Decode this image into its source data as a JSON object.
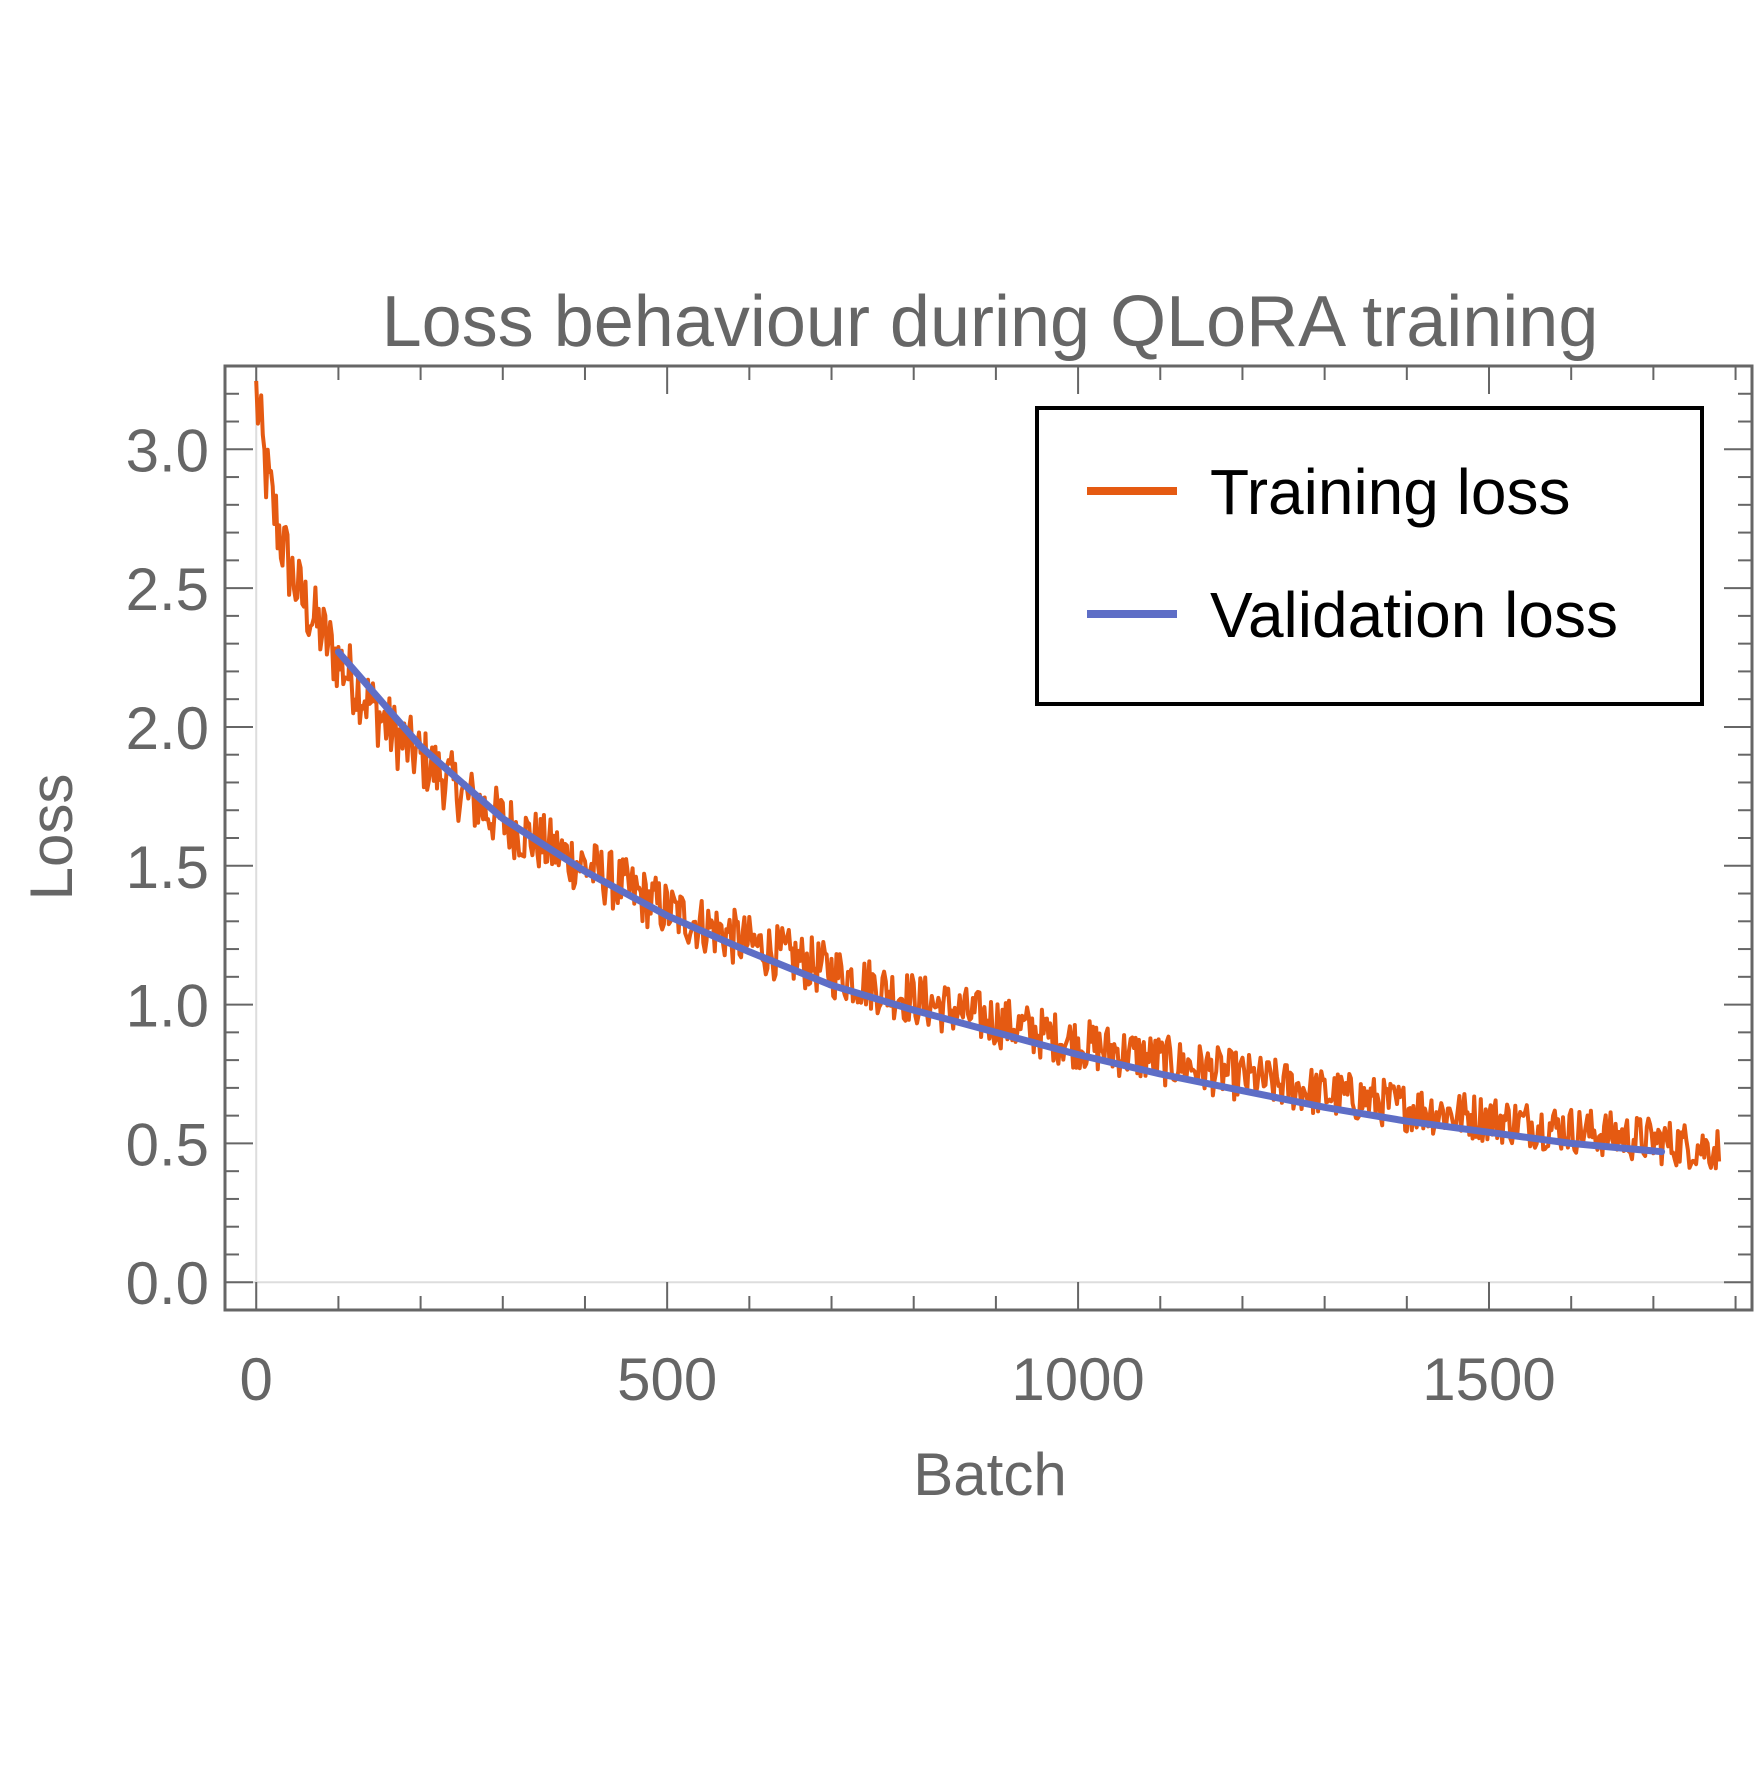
{
  "chart_data": {
    "type": "line",
    "title": "Loss behaviour during QLoRA training",
    "xlabel": "Batch",
    "ylabel": "Loss",
    "xlim": [
      -38,
      1820
    ],
    "ylim": [
      -0.1,
      3.3
    ],
    "x_ticks": [
      0,
      500,
      1000,
      1500
    ],
    "x_tick_labels": [
      "0",
      "500",
      "1000",
      "1500"
    ],
    "y_ticks": [
      0.0,
      0.5,
      1.0,
      1.5,
      2.0,
      2.5,
      3.0
    ],
    "y_tick_labels": [
      "0.0",
      "0.5",
      "1.0",
      "1.5",
      "2.0",
      "2.5",
      "3.0"
    ],
    "grid": false,
    "legend_position": "top-right",
    "series": [
      {
        "name": "Training loss",
        "color": "#e55a12",
        "x": [
          0,
          10,
          20,
          30,
          40,
          50,
          60,
          70,
          80,
          90,
          100,
          120,
          140,
          160,
          180,
          200,
          220,
          240,
          260,
          280,
          300,
          330,
          360,
          400,
          450,
          500,
          550,
          600,
          650,
          700,
          750,
          800,
          850,
          900,
          950,
          1000,
          1050,
          1100,
          1150,
          1200,
          1250,
          1300,
          1350,
          1400,
          1450,
          1500,
          1550,
          1600,
          1650,
          1700,
          1750,
          1780
        ],
        "y": [
          3.2,
          2.95,
          2.8,
          2.68,
          2.58,
          2.5,
          2.44,
          2.39,
          2.34,
          2.29,
          2.24,
          2.16,
          2.08,
          2.0,
          1.94,
          1.89,
          1.84,
          1.79,
          1.74,
          1.7,
          1.66,
          1.61,
          1.56,
          1.5,
          1.42,
          1.34,
          1.28,
          1.22,
          1.17,
          1.12,
          1.07,
          1.02,
          0.98,
          0.94,
          0.9,
          0.86,
          0.83,
          0.8,
          0.77,
          0.74,
          0.71,
          0.68,
          0.66,
          0.63,
          0.61,
          0.59,
          0.57,
          0.55,
          0.53,
          0.51,
          0.49,
          0.48
        ],
        "noise_amplitude": 0.12
      },
      {
        "name": "Validation loss",
        "color": "#5e6ec6",
        "x": [
          100,
          200,
          300,
          400,
          500,
          600,
          700,
          800,
          900,
          1000,
          1100,
          1200,
          1300,
          1400,
          1500,
          1600,
          1710
        ],
        "y": [
          2.27,
          1.93,
          1.67,
          1.48,
          1.32,
          1.19,
          1.07,
          0.98,
          0.9,
          0.82,
          0.75,
          0.69,
          0.63,
          0.58,
          0.54,
          0.5,
          0.47
        ]
      }
    ]
  }
}
